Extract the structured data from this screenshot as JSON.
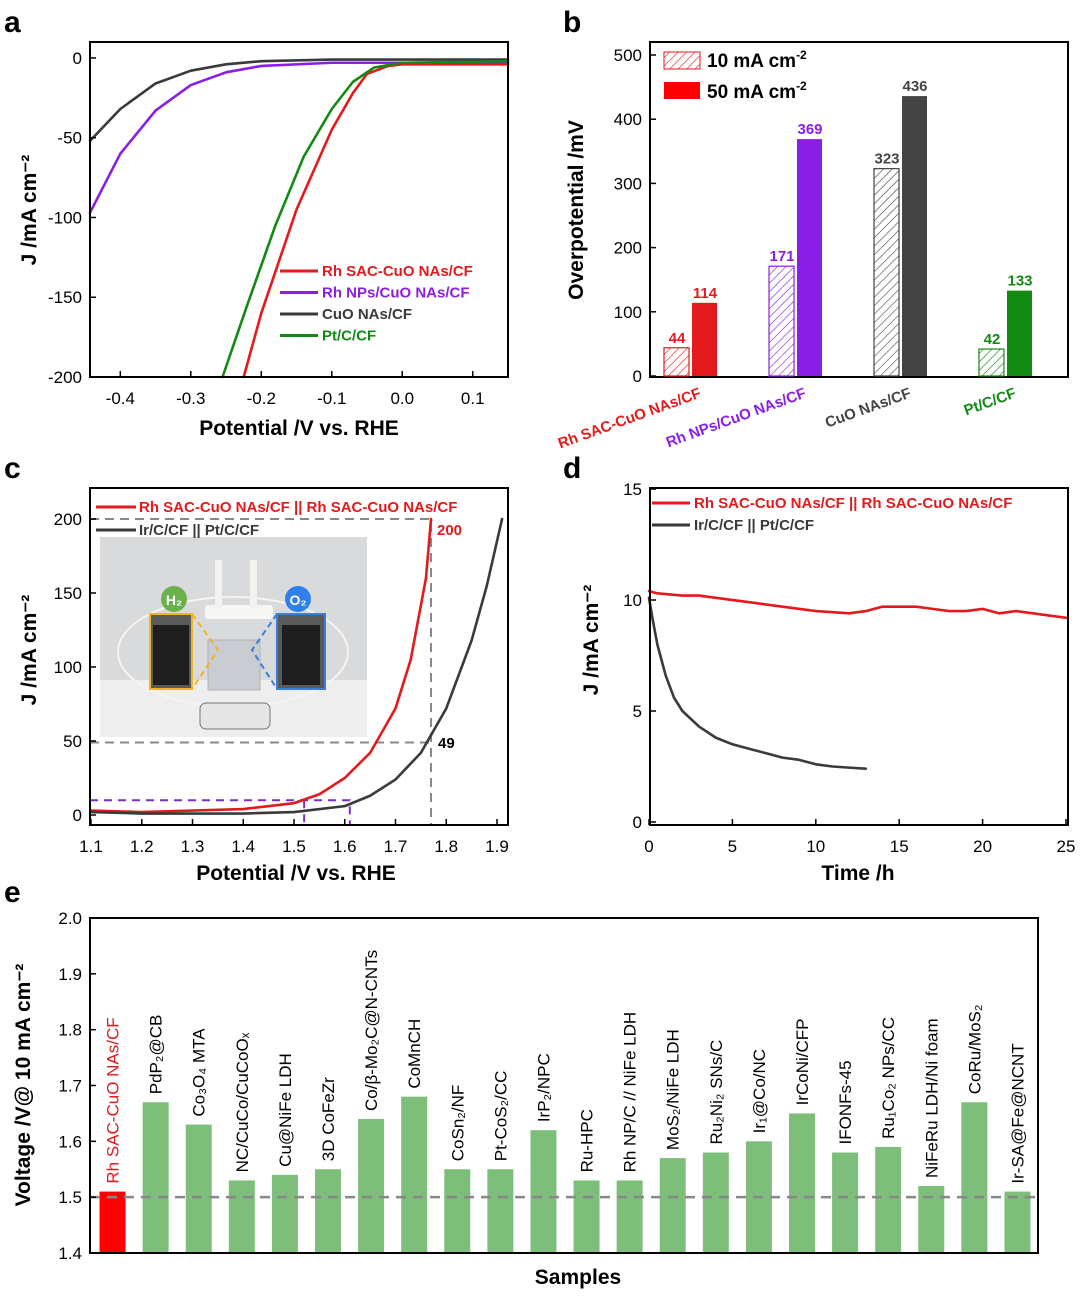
{
  "chart_data": [
    {
      "panel": "a",
      "type": "line",
      "xlabel": "Potential /V vs. RHE",
      "ylabel": "J /mA cm⁻²",
      "xlim": [
        -0.443,
        0.15
      ],
      "ylim": [
        -200,
        10
      ],
      "xticks": [
        "-0.4",
        "-0.3",
        "-0.2",
        "-0.1",
        "0.0",
        "0.1"
      ],
      "xtick_values": [
        -0.4,
        -0.3,
        -0.2,
        -0.1,
        0.0,
        0.1
      ],
      "yticks": [
        "0",
        "-50",
        "-100",
        "-150",
        "-200"
      ],
      "ytick_values": [
        0,
        -50,
        -100,
        -150,
        -200
      ],
      "legend_position": "bottom-right",
      "series": [
        {
          "name": "Rh SAC-CuO NAs/CF",
          "color": "#e31a1c",
          "x": [
            -0.225,
            -0.2,
            -0.15,
            -0.1,
            -0.07,
            -0.05,
            -0.02,
            0.0,
            0.15
          ],
          "y": [
            -200,
            -160,
            -95,
            -45,
            -22,
            -10,
            -5,
            -4,
            -4
          ]
        },
        {
          "name": "Rh NPs/CuO NAs/CF",
          "color": "#8a1ee6",
          "x": [
            -0.443,
            -0.4,
            -0.35,
            -0.3,
            -0.25,
            -0.2,
            -0.1,
            0.0,
            0.15
          ],
          "y": [
            -97,
            -60,
            -33,
            -17,
            -9,
            -5,
            -3,
            -3,
            -3
          ]
        },
        {
          "name": "CuO NAs/CF",
          "color": "#3a3a3a",
          "x": [
            -0.443,
            -0.4,
            -0.35,
            -0.3,
            -0.25,
            -0.2,
            -0.1,
            0.0,
            0.15
          ],
          "y": [
            -52,
            -32,
            -16,
            -8,
            -4,
            -2,
            -1,
            -1,
            -1
          ]
        },
        {
          "name": "Pt/C/CF",
          "color": "#138a13",
          "x": [
            -0.255,
            -0.22,
            -0.18,
            -0.14,
            -0.1,
            -0.07,
            -0.04,
            0.0,
            0.15
          ],
          "y": [
            -200,
            -155,
            -105,
            -62,
            -32,
            -15,
            -6,
            -3,
            -2
          ]
        }
      ]
    },
    {
      "panel": "b",
      "type": "bar",
      "ylabel": "Overpotential /mV",
      "ylim": [
        0,
        500
      ],
      "yticks": [
        "0",
        "100",
        "200",
        "300",
        "400",
        "500"
      ],
      "ytick_values": [
        0,
        100,
        200,
        300,
        400,
        500
      ],
      "legend_position": "top-left",
      "legend": [
        {
          "name": "10 mA cm",
          "sup": "-2",
          "style": "hatched"
        },
        {
          "name": "50 mA cm",
          "sup": "-2",
          "style": "solid"
        }
      ],
      "categories": [
        "Rh SAC-CuO NAs/CF",
        "Rh NPs/CuO NAs/CF",
        "CuO NAs/CF",
        "Pt/C/CF"
      ],
      "category_colors": [
        "#e31a1c",
        "#8a1ee6",
        "#444444",
        "#138a13"
      ],
      "series": [
        {
          "name": "10 mA cm-2",
          "values": [
            44,
            171,
            323,
            42
          ]
        },
        {
          "name": "50 mA cm-2",
          "values": [
            114,
            369,
            436,
            133
          ]
        }
      ]
    },
    {
      "panel": "c",
      "type": "line",
      "xlabel": "Potential /V vs. RHE",
      "ylabel": "J /mA cm⁻²",
      "xlim": [
        1.1,
        1.92
      ],
      "ylim": [
        -7,
        221
      ],
      "xticks": [
        "1.1",
        "1.2",
        "1.3",
        "1.4",
        "1.5",
        "1.6",
        "1.7",
        "1.8",
        "1.9"
      ],
      "xtick_values": [
        1.1,
        1.2,
        1.3,
        1.4,
        1.5,
        1.6,
        1.7,
        1.8,
        1.9
      ],
      "yticks": [
        "0",
        "50",
        "100",
        "150",
        "200"
      ],
      "ytick_values": [
        0,
        50,
        100,
        150,
        200
      ],
      "legend_position": "top-left",
      "annotations": [
        "200",
        "49"
      ],
      "inset": {
        "badges": [
          "H₂",
          "O₂"
        ]
      },
      "series": [
        {
          "name": "Rh SAC-CuO NAs/CF || Rh SAC-CuO NAs/CF",
          "color": "#e31a1c",
          "x": [
            1.1,
            1.2,
            1.3,
            1.4,
            1.5,
            1.55,
            1.6,
            1.65,
            1.7,
            1.73,
            1.76,
            1.77
          ],
          "y": [
            3,
            2,
            3,
            4,
            8,
            14,
            25,
            42,
            72,
            105,
            160,
            200
          ]
        },
        {
          "name": "Ir/C/CF || Pt/C/CF",
          "color": "#3a3a3a",
          "x": [
            1.1,
            1.2,
            1.3,
            1.4,
            1.5,
            1.6,
            1.65,
            1.7,
            1.75,
            1.8,
            1.85,
            1.88,
            1.91
          ],
          "y": [
            2,
            1,
            1,
            1,
            2,
            6,
            13,
            24,
            42,
            72,
            118,
            155,
            200
          ]
        }
      ]
    },
    {
      "panel": "d",
      "type": "line",
      "xlabel": "Time /h",
      "ylabel": "J /mA cm⁻²",
      "xlim": [
        0,
        25
      ],
      "ylim": [
        0,
        15
      ],
      "xticks": [
        "0",
        "5",
        "10",
        "15",
        "20",
        "25"
      ],
      "xtick_values": [
        0,
        5,
        10,
        15,
        20,
        25
      ],
      "yticks": [
        "0",
        "5",
        "10",
        "15"
      ],
      "ytick_values": [
        0,
        5,
        10,
        15
      ],
      "legend_position": "top",
      "series": [
        {
          "name": "Rh SAC-CuO NAs/CF || Rh SAC-CuO NAs/CF",
          "color": "#e31a1c",
          "x": [
            0,
            0.5,
            2,
            3,
            4,
            6,
            8,
            10,
            12,
            13,
            14,
            15,
            16,
            17,
            18,
            19,
            20,
            21,
            22,
            23,
            24,
            25
          ],
          "y": [
            10.4,
            10.3,
            10.2,
            10.2,
            10.1,
            9.9,
            9.7,
            9.5,
            9.4,
            9.5,
            9.7,
            9.7,
            9.7,
            9.6,
            9.5,
            9.5,
            9.6,
            9.4,
            9.5,
            9.4,
            9.3,
            9.2
          ]
        },
        {
          "name": "Ir/C/CF || Pt/C/CF",
          "color": "#3a3a3a",
          "x": [
            0,
            0.2,
            0.5,
            1,
            1.5,
            2,
            3,
            4,
            5,
            6,
            7,
            8,
            9,
            10,
            11,
            12,
            13
          ],
          "y": [
            10.1,
            9.2,
            8.0,
            6.6,
            5.6,
            5.0,
            4.3,
            3.8,
            3.5,
            3.3,
            3.1,
            2.9,
            2.8,
            2.6,
            2.5,
            2.45,
            2.4
          ]
        }
      ]
    },
    {
      "panel": "e",
      "type": "bar",
      "xlabel": "Samples",
      "ylabel": "Voltage /V@ 10 mA cm⁻²",
      "ylim": [
        1.4,
        2.0
      ],
      "reference_line": 1.5,
      "yticks": [
        "1.4",
        "1.5",
        "1.6",
        "1.7",
        "1.8",
        "1.9",
        "2.0"
      ],
      "ytick_values": [
        1.4,
        1.5,
        1.6,
        1.7,
        1.8,
        1.9,
        2.0
      ],
      "highlight_color": "#ff0000",
      "bar_color": "#7dbf7a",
      "categories": [
        "Rh SAC-CuO NAs/CF",
        "PdP₂@CB",
        "Co₃O₄ MTA",
        "NC/CuCo/CuCoOₓ",
        "Cu@NiFe LDH",
        "3D CoFeZr",
        "Co/β-Mo₂C@N-CNTs",
        "CoMnCH",
        "CoSn₂/NF",
        "Pt-CoS₂/CC",
        "IrP₂/NPC",
        "Ru-HPC",
        "Rh NP/C // NiFe LDH",
        "MoS₂/NiFe LDH",
        "Ru₂Ni₂ SNs/C",
        "Ir₁@Co/NC",
        "IrCoNi/CFP",
        "IFONFs-45",
        "Ru₁Co₂ NPs/CC",
        "NiFeRu LDH/Ni foam",
        "CoRu/MoS₂",
        "Ir-SA@Fe@NCNT"
      ],
      "values": [
        1.51,
        1.67,
        1.63,
        1.53,
        1.54,
        1.55,
        1.64,
        1.68,
        1.55,
        1.55,
        1.62,
        1.53,
        1.53,
        1.57,
        1.58,
        1.6,
        1.65,
        1.58,
        1.59,
        1.52,
        1.67,
        1.51
      ]
    }
  ],
  "panel_labels": [
    "a",
    "b",
    "c",
    "d",
    "e"
  ]
}
